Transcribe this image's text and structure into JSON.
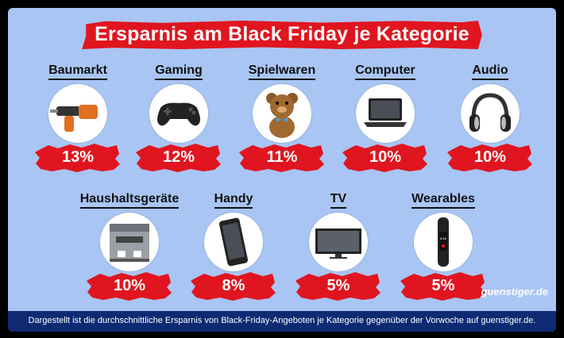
{
  "title": "Ersparnis am Black Friday je Kategorie",
  "footer_note": "Dargestellt ist die durchschnittliche Ersparnis von Black-Friday-Angeboten je Kategorie gegenüber der Vorwoche auf guenstiger.de.",
  "brand": "guenstiger.de",
  "colors": {
    "background": "#a9c5f3",
    "accent": "#e0151f",
    "footer": "#0d2a73"
  },
  "chart_data": {
    "type": "table",
    "title": "Ersparnis am Black Friday je Kategorie",
    "categories": [
      "Baumarkt",
      "Gaming",
      "Spielwaren",
      "Computer",
      "Audio",
      "Haushaltsgeräte",
      "Handy",
      "TV",
      "Wearables"
    ],
    "values": [
      13,
      12,
      11,
      10,
      10,
      10,
      8,
      5,
      5
    ],
    "value_labels": [
      "13%",
      "12%",
      "11%",
      "10%",
      "10%",
      "10%",
      "8%",
      "5%",
      "5%"
    ],
    "icons": [
      "drill-icon",
      "gamepad-icon",
      "teddy-bear-icon",
      "laptop-icon",
      "headphones-icon",
      "coffee-machine-icon",
      "smartphone-icon",
      "tv-icon",
      "fitness-tracker-icon"
    ]
  }
}
